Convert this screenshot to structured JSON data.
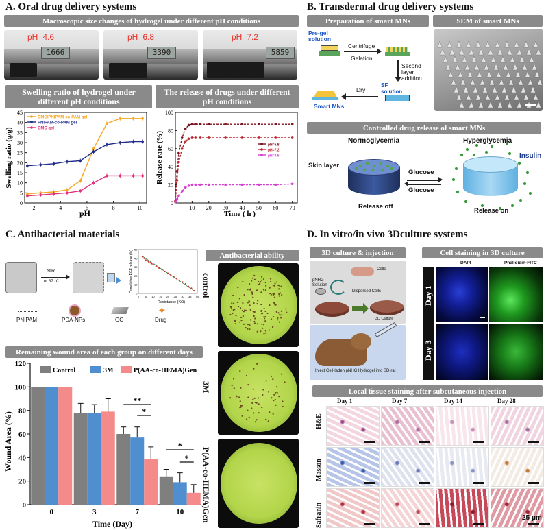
{
  "panelA": {
    "title": "A. Oral drug delivery systems",
    "macro_header": "Macroscopic size changes of hydrogel under different pH conditions",
    "ph_labels": [
      "pH=4.6",
      "pH=6.8",
      "pH=7.2"
    ],
    "caliper_readings": [
      "1666",
      "3390",
      "5859"
    ],
    "swelling_title": "Swelling ratio of hydrogel under different pH conditions",
    "release_title": "The release of drugs under different pH conditions"
  },
  "panelB": {
    "title": "B. Transdermal drug delivery systems",
    "prep_header": "Preparation of smart MNs",
    "sem_header": "SEM of smart MNs",
    "prep_labels": {
      "pregel": "Pre-gel solution",
      "centrifuge": "Centrifuge",
      "gelation": "Gelation",
      "second": "Second layer addition",
      "sf": "SF solution",
      "dry": "Dry",
      "smart": "Smart MNs"
    },
    "controlled_header": "Controlled drug release of smart MNs",
    "normo": "Normoglycemia",
    "hyper": "Hyperglycemia",
    "skin_layer": "Skin layer",
    "insulin": "Insulin",
    "glucose_top": "Glucose",
    "glucose_bottom": "Glucose",
    "release_off": "Release off",
    "release_on": "Release on"
  },
  "panelC": {
    "title": "C. Antibacterial materials",
    "nir": "NIR",
    "nir_sub": "or 37 °C",
    "legend": [
      "PNIPAM",
      "PDA-NPs",
      "GO",
      "Drug"
    ],
    "ability_header": "Antibacterial ability",
    "dish_labels": [
      "control",
      "3M",
      "P(AA-co-HEMA)Gen"
    ],
    "wound_header": "Remaining wound area of each group on different days",
    "sig": [
      "**",
      "*",
      "*",
      "*"
    ]
  },
  "panelD": {
    "title": "D. In vitro/in vivo 3Dculture systems",
    "culture_header": "3D culture & injection",
    "pnhg": "pNHG Solution",
    "cells": "Cells",
    "dispersed": "Dispersed Cells",
    "culture3d": "3D Culture",
    "inject": "Inject Cell-laden pNHG Hydrogel into SD-rat",
    "staining_header": "Cell staining in 3D culture",
    "dapi": "DAPI",
    "phalloidin": "Phalloidin-FITC",
    "day1": "Day 1",
    "day3": "Day 3",
    "tissue_header": "Local tissue staining after subcutaneous injection",
    "days": [
      "Day 1",
      "Day 7",
      "Day 14",
      "Day 28"
    ],
    "stains": [
      "H&E",
      "Masson",
      "Safranin"
    ],
    "scalebar": "25 μm"
  },
  "chart_data": [
    {
      "type": "line",
      "xlabel": "pH",
      "ylabel": "Swelling ratio (g/g)",
      "xlim": [
        1.3,
        10.5
      ],
      "ylim": [
        0,
        45
      ],
      "xticks": [
        2,
        4,
        6,
        8,
        10
      ],
      "yticks": [
        0,
        5,
        10,
        15,
        20,
        25,
        30,
        35,
        40,
        45
      ],
      "legend_position": "top-left",
      "series": [
        {
          "name": "CMC/PNIPAM-co-PAM gel",
          "color": "#f5a623",
          "x": [
            1.5,
            2.5,
            3.5,
            4.5,
            5.5,
            6.5,
            7.5,
            8.5,
            9.5,
            10.2
          ],
          "y": [
            4.5,
            5.0,
            5.5,
            6.5,
            11,
            27,
            39.5,
            42,
            42,
            42
          ]
        },
        {
          "name": "PNIPAM-co-PAM gel",
          "color": "#1f2a8a",
          "x": [
            1.5,
            2.5,
            3.5,
            4.5,
            5.5,
            6.5,
            7.5,
            8.5,
            9.5,
            10.2
          ],
          "y": [
            18.5,
            19,
            19.5,
            20.5,
            21,
            25.5,
            29,
            30,
            30.5,
            30.5
          ]
        },
        {
          "name": "CMC gel",
          "color": "#e0307a",
          "x": [
            1.5,
            2.5,
            3.5,
            4.5,
            5.5,
            6.5,
            7.5,
            8.5,
            9.5,
            10.2
          ],
          "y": [
            3.5,
            4,
            4.5,
            5.0,
            6,
            10,
            13.5,
            13.5,
            13.5,
            13.5
          ]
        }
      ]
    },
    {
      "type": "line",
      "xlabel": "Time ( h )",
      "ylabel": "Release rate (%)",
      "xlim": [
        0,
        73
      ],
      "ylim": [
        0,
        100
      ],
      "xticks": [
        10,
        20,
        30,
        40,
        50,
        60,
        70
      ],
      "yticks": [
        0,
        20,
        40,
        60,
        80,
        100
      ],
      "legend_position": "center-right",
      "series": [
        {
          "name": "pH=6.8",
          "color": "#7a0f1e",
          "x": [
            0,
            1,
            2,
            4,
            6,
            8,
            10,
            12,
            15,
            20,
            30,
            40,
            50,
            60,
            70
          ],
          "y": [
            2,
            35,
            55,
            72,
            82,
            86,
            87,
            87,
            87,
            87,
            87,
            87,
            87,
            87,
            87
          ]
        },
        {
          "name": "pH=7.2",
          "color": "#c0272d",
          "x": [
            0,
            1,
            2,
            4,
            6,
            8,
            10,
            12,
            15,
            20,
            30,
            40,
            50,
            60,
            70
          ],
          "y": [
            2,
            25,
            45,
            60,
            68,
            71,
            72,
            72,
            72,
            72,
            72,
            72,
            72,
            72,
            72
          ]
        },
        {
          "name": "pH=4.6",
          "color": "#d63fd0",
          "x": [
            0,
            1,
            2,
            4,
            6,
            8,
            10,
            12,
            15,
            20,
            30,
            40,
            50,
            60,
            70
          ],
          "y": [
            1,
            4,
            8,
            13,
            17,
            19,
            20,
            20,
            20,
            20,
            20,
            20,
            20,
            20,
            21
          ]
        }
      ]
    },
    {
      "type": "bar",
      "xlabel": "Time (Day)",
      "ylabel": "Wound Area (%)",
      "categories": [
        "0",
        "3",
        "7",
        "10"
      ],
      "ylim": [
        0,
        120
      ],
      "yticks": [
        0,
        20,
        40,
        60,
        80,
        100,
        120
      ],
      "legend_position": "top",
      "series": [
        {
          "name": "Control",
          "color": "#7f7f7f",
          "values": [
            100,
            78,
            60,
            24
          ],
          "errors": [
            0,
            8,
            6,
            6
          ]
        },
        {
          "name": "3M",
          "color": "#4f8fd0",
          "values": [
            100,
            78,
            57,
            19
          ],
          "errors": [
            0,
            7,
            9,
            8
          ]
        },
        {
          "name": "P(AA-co-HEMA)Gen",
          "color": "#f58a8a",
          "values": [
            100,
            79,
            39,
            10
          ],
          "errors": [
            0,
            11,
            10,
            7
          ]
        }
      ]
    },
    {
      "type": "scatter",
      "xlabel": "Resistance (KΩ)",
      "ylabel": "Cumulative EGF release (%)",
      "xlim": [
        0,
        40
      ],
      "ylim": [
        0,
        50
      ],
      "xticks": [
        0,
        5,
        10,
        15,
        20,
        25,
        30,
        35,
        40
      ],
      "yticks": [
        0,
        10,
        20,
        30,
        40,
        50
      ],
      "series": [
        {
          "name": "",
          "color": "#d0312d",
          "x": [
            3,
            4,
            5,
            6,
            7,
            8,
            9,
            10,
            12,
            14,
            16,
            18,
            20,
            22,
            24,
            26,
            28,
            30,
            32,
            34,
            36,
            38
          ],
          "y": [
            42,
            40,
            38,
            37,
            36,
            35,
            34,
            33,
            31,
            29,
            27,
            25,
            23,
            21,
            19,
            17,
            15,
            13,
            11,
            8,
            6,
            3
          ]
        }
      ]
    }
  ]
}
